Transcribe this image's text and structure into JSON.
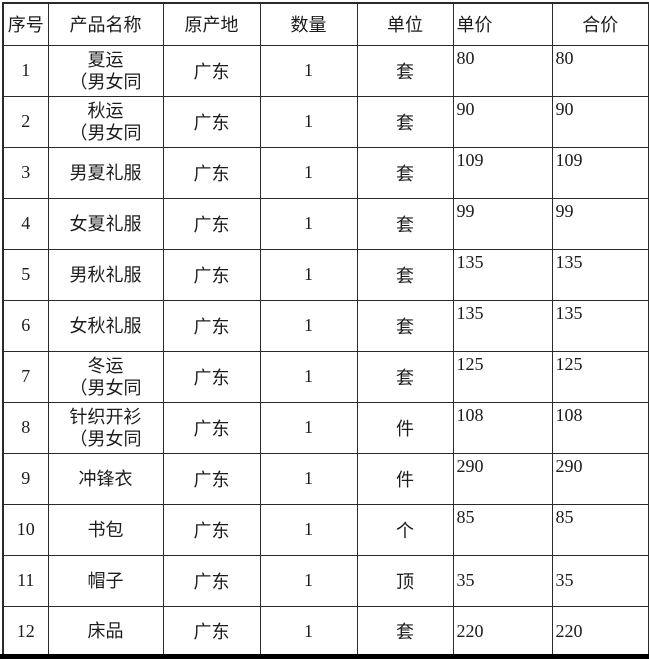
{
  "header": {
    "columns": [
      "序号",
      "产品名称",
      "原产地",
      "数量",
      "单位",
      "单价",
      "合价"
    ]
  },
  "rows": [
    {
      "index": "1",
      "name_lines": [
        "夏运",
        "（男女同"
      ],
      "origin": "广东",
      "qty": "1",
      "unit": "套",
      "unit_price": "80",
      "total_price": "80",
      "price_valign": "top"
    },
    {
      "index": "2",
      "name_lines": [
        "秋运",
        "（男女同"
      ],
      "origin": "广东",
      "qty": "1",
      "unit": "套",
      "unit_price": "90",
      "total_price": "90",
      "price_valign": "top"
    },
    {
      "index": "3",
      "name_lines": [
        "男夏礼服"
      ],
      "origin": "广东",
      "qty": "1",
      "unit": "套",
      "unit_price": "109",
      "total_price": "109",
      "price_valign": "top"
    },
    {
      "index": "4",
      "name_lines": [
        "女夏礼服"
      ],
      "origin": "广东",
      "qty": "1",
      "unit": "套",
      "unit_price": "99",
      "total_price": "99",
      "price_valign": "top"
    },
    {
      "index": "5",
      "name_lines": [
        "男秋礼服"
      ],
      "origin": "广东",
      "qty": "1",
      "unit": "套",
      "unit_price": "135",
      "total_price": "135",
      "price_valign": "top"
    },
    {
      "index": "6",
      "name_lines": [
        "女秋礼服"
      ],
      "origin": "广东",
      "qty": "1",
      "unit": "套",
      "unit_price": "135",
      "total_price": "135",
      "price_valign": "top"
    },
    {
      "index": "7",
      "name_lines": [
        "冬运",
        "（男女同"
      ],
      "origin": "广东",
      "qty": "1",
      "unit": "套",
      "unit_price": "125",
      "total_price": "125",
      "price_valign": "top"
    },
    {
      "index": "8",
      "name_lines": [
        "针织开衫",
        "（男女同"
      ],
      "origin": "广东",
      "qty": "1",
      "unit": "件",
      "unit_price": "108",
      "total_price": "108",
      "price_valign": "top"
    },
    {
      "index": "9",
      "name_lines": [
        "冲锋衣"
      ],
      "origin": "广东",
      "qty": "1",
      "unit": "件",
      "unit_price": "290",
      "total_price": "290",
      "price_valign": "top"
    },
    {
      "index": "10",
      "name_lines": [
        "书包"
      ],
      "origin": "广东",
      "qty": "1",
      "unit": "个",
      "unit_price": "85",
      "total_price": "85",
      "price_valign": "top"
    },
    {
      "index": "11",
      "name_lines": [
        "帽子"
      ],
      "origin": "广东",
      "qty": "1",
      "unit": "顶",
      "unit_price": "35",
      "total_price": "35",
      "price_valign": "middle"
    },
    {
      "index": "12",
      "name_lines": [
        "床品"
      ],
      "origin": "广东",
      "qty": "1",
      "unit": "套",
      "unit_price": "220",
      "total_price": "220",
      "price_valign": "middle"
    }
  ],
  "colors": {
    "border": "#2a2a2a",
    "text": "#1c1c1c",
    "background": "#ffffff",
    "bottom_bar": "#000000"
  }
}
